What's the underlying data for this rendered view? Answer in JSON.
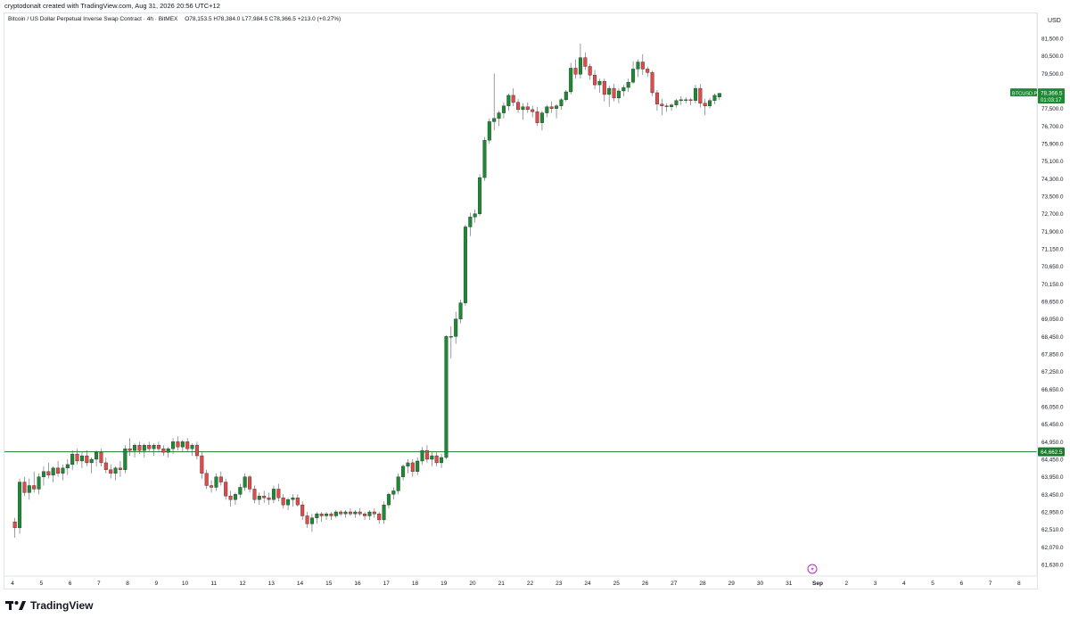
{
  "header": {
    "credit": "cryptodonalt created with TradingView.com, Aug 31, 2026 20:56 UTC+12"
  },
  "legend": {
    "symbol": "Bitcoin / US Dollar Perpetual Inverse Swap Contract · 4h · BitMEX",
    "open": "O78,153.5",
    "high": "H78,384.0",
    "low": "L77,984.5",
    "close": "C78,366.5",
    "change": "+213.0 (+0.27%)"
  },
  "footer": {
    "brand": "TradingView"
  },
  "price_label": {
    "symbol_tag": "BTCUSD.P",
    "price": "78,366.5",
    "countdown": "01:03:17"
  },
  "level_label": {
    "price": "64,662.5"
  },
  "colors": {
    "up": "#26a69a",
    "down": "#ef5350",
    "up_body": "#1b8a32",
    "down_body": "#e24a4a",
    "level": "#1b7a2b",
    "grid": "#f0f3fa"
  },
  "chart_data": {
    "type": "candlestick",
    "ylabel": "USD",
    "y_ticks": [
      "81,500.0",
      "80,500.0",
      "79,500.0",
      "78,500.0",
      "77,500.0",
      "76,700.0",
      "75,900.0",
      "75,100.0",
      "74,300.0",
      "73,500.0",
      "72,700.0",
      "71,900.0",
      "71,150.0",
      "70,650.0",
      "70,150.0",
      "69,650.0",
      "69,050.0",
      "68,450.0",
      "67,850.0",
      "67,250.0",
      "66,650.0",
      "66,050.0",
      "65,450.0",
      "64,950.0",
      "64,450.0",
      "63,950.0",
      "63,450.0",
      "62,950.0",
      "62,510.0",
      "62,070.0",
      "61,630.0"
    ],
    "x_ticks": [
      "4",
      "5",
      "6",
      "7",
      "8",
      "9",
      "10",
      "11",
      "12",
      "13",
      "14",
      "15",
      "16",
      "17",
      "18",
      "19",
      "20",
      "21",
      "22",
      "23",
      "24",
      "25",
      "26",
      "27",
      "28",
      "29",
      "30",
      "31",
      "Sep",
      "2",
      "3",
      "4",
      "5",
      "6",
      "7",
      "8"
    ],
    "horizontal_level": 64662.5,
    "last_price": 78366.5,
    "candles_per_day": 6,
    "first_day": "4",
    "ohlc": [
      [
        62700,
        62800,
        62300,
        62550
      ],
      [
        62550,
        63900,
        62400,
        63800
      ],
      [
        63800,
        63950,
        63400,
        63500
      ],
      [
        63500,
        63900,
        63300,
        63700
      ],
      [
        63700,
        64100,
        63500,
        63600
      ],
      [
        63600,
        64050,
        63450,
        63950
      ],
      [
        63950,
        64250,
        63700,
        64100
      ],
      [
        64100,
        64350,
        63900,
        64000
      ],
      [
        64000,
        64250,
        63800,
        64200
      ],
      [
        64200,
        64400,
        63950,
        64050
      ],
      [
        64050,
        64300,
        63850,
        64200
      ],
      [
        64200,
        64450,
        64000,
        64300
      ],
      [
        64300,
        64700,
        64150,
        64600
      ],
      [
        64600,
        64750,
        64300,
        64400
      ],
      [
        64400,
        64650,
        64200,
        64550
      ],
      [
        64550,
        64700,
        64250,
        64350
      ],
      [
        64350,
        64500,
        64050,
        64450
      ],
      [
        64450,
        64700,
        64250,
        64650
      ],
      [
        64650,
        64750,
        64250,
        64350
      ],
      [
        64350,
        64500,
        64050,
        64150
      ],
      [
        64150,
        64300,
        63900,
        64050
      ],
      [
        64050,
        64250,
        63850,
        64200
      ],
      [
        64200,
        64400,
        63950,
        64150
      ],
      [
        64150,
        64850,
        64050,
        64750
      ],
      [
        64750,
        65050,
        64550,
        64700
      ],
      [
        64700,
        64900,
        64500,
        64850
      ],
      [
        64850,
        64950,
        64600,
        64700
      ],
      [
        64700,
        64900,
        64500,
        64850
      ],
      [
        64850,
        64950,
        64650,
        64750
      ],
      [
        64750,
        64900,
        64550,
        64850
      ],
      [
        64850,
        64950,
        64650,
        64750
      ],
      [
        64750,
        64850,
        64550,
        64650
      ],
      [
        64650,
        64800,
        64500,
        64750
      ],
      [
        64750,
        65050,
        64600,
        64950
      ],
      [
        64950,
        65100,
        64700,
        64800
      ],
      [
        64800,
        65000,
        64650,
        64950
      ],
      [
        64950,
        65050,
        64650,
        64750
      ],
      [
        64750,
        64900,
        64550,
        64850
      ],
      [
        64850,
        64950,
        64450,
        64550
      ],
      [
        64550,
        64650,
        63900,
        64050
      ],
      [
        64050,
        64150,
        63600,
        63700
      ],
      [
        63700,
        63850,
        63500,
        63650
      ],
      [
        63650,
        64050,
        63550,
        63950
      ],
      [
        63950,
        64100,
        63700,
        63800
      ],
      [
        63800,
        63900,
        63300,
        63400
      ],
      [
        63400,
        63550,
        63100,
        63300
      ],
      [
        63300,
        63500,
        63150,
        63450
      ],
      [
        63450,
        63750,
        63350,
        63650
      ],
      [
        63650,
        64050,
        63550,
        63950
      ],
      [
        63950,
        64000,
        63500,
        63600
      ],
      [
        63600,
        63700,
        63200,
        63300
      ],
      [
        63300,
        63500,
        63150,
        63400
      ],
      [
        63400,
        63550,
        63200,
        63350
      ],
      [
        63350,
        63500,
        63150,
        63300
      ],
      [
        63300,
        63700,
        63200,
        63600
      ],
      [
        63600,
        63750,
        63250,
        63350
      ],
      [
        63350,
        63450,
        63050,
        63150
      ],
      [
        63150,
        63350,
        63000,
        63300
      ],
      [
        63300,
        63450,
        63100,
        63350
      ],
      [
        63350,
        63450,
        63100,
        63150
      ],
      [
        63150,
        63250,
        62750,
        62850
      ],
      [
        62850,
        62950,
        62550,
        62650
      ],
      [
        62650,
        62900,
        62450,
        62800
      ],
      [
        62800,
        62950,
        62650,
        62900
      ],
      [
        62900,
        62950,
        62700,
        62850
      ],
      [
        62850,
        62950,
        62750,
        62900
      ],
      [
        62900,
        62950,
        62750,
        62850
      ],
      [
        62850,
        63000,
        62800,
        62950
      ],
      [
        62950,
        63000,
        62850,
        62900
      ],
      [
        62900,
        63000,
        62800,
        62950
      ],
      [
        62950,
        63050,
        62850,
        62900
      ],
      [
        62900,
        63000,
        62800,
        62950
      ],
      [
        62950,
        63050,
        62850,
        62900
      ],
      [
        62900,
        62950,
        62750,
        62850
      ],
      [
        62850,
        63000,
        62750,
        62950
      ],
      [
        62950,
        63050,
        62800,
        62900
      ],
      [
        62900,
        62950,
        62650,
        62750
      ],
      [
        62750,
        63250,
        62650,
        63150
      ],
      [
        63150,
        63500,
        63050,
        63450
      ],
      [
        63450,
        63650,
        63300,
        63550
      ],
      [
        63550,
        64050,
        63450,
        63950
      ],
      [
        63950,
        64300,
        63850,
        64250
      ],
      [
        64250,
        64450,
        64050,
        64350
      ],
      [
        64350,
        64450,
        63950,
        64100
      ],
      [
        64100,
        64500,
        64000,
        64400
      ],
      [
        64400,
        64800,
        64300,
        64700
      ],
      [
        64700,
        64850,
        64350,
        64450
      ],
      [
        64450,
        64650,
        64250,
        64550
      ],
      [
        64550,
        64650,
        64250,
        64350
      ],
      [
        64350,
        64600,
        64200,
        64500
      ],
      [
        64500,
        68500,
        64450,
        68450
      ],
      [
        68450,
        68800,
        67700,
        68450
      ],
      [
        68450,
        69300,
        68200,
        69050
      ],
      [
        69050,
        69700,
        68900,
        69600
      ],
      [
        69600,
        72200,
        69500,
        72100
      ],
      [
        72100,
        72750,
        71700,
        72550
      ],
      [
        72550,
        72900,
        72300,
        72700
      ],
      [
        72700,
        74500,
        72600,
        74350
      ],
      [
        74350,
        76200,
        74200,
        76050
      ],
      [
        76050,
        77050,
        75900,
        76900
      ],
      [
        76900,
        79500,
        76500,
        77050
      ],
      [
        77050,
        77400,
        76700,
        77300
      ],
      [
        77300,
        77850,
        77050,
        77650
      ],
      [
        77650,
        78350,
        77400,
        78250
      ],
      [
        78250,
        78650,
        77650,
        77850
      ],
      [
        77850,
        78050,
        77300,
        77450
      ],
      [
        77450,
        77800,
        77000,
        77600
      ],
      [
        77600,
        77850,
        77300,
        77450
      ],
      [
        77450,
        77650,
        77100,
        77350
      ],
      [
        77350,
        77600,
        76700,
        76850
      ],
      [
        76850,
        77400,
        76500,
        77300
      ],
      [
        77300,
        77700,
        77100,
        77600
      ],
      [
        77600,
        77900,
        77300,
        77500
      ],
      [
        77500,
        77750,
        77050,
        77650
      ],
      [
        77650,
        78100,
        77450,
        78000
      ],
      [
        78000,
        78550,
        77900,
        78450
      ],
      [
        78450,
        80100,
        78300,
        79800
      ],
      [
        79800,
        80300,
        79200,
        79450
      ],
      [
        79450,
        81200,
        79200,
        80400
      ],
      [
        80400,
        80700,
        79700,
        79900
      ],
      [
        79900,
        80050,
        79150,
        79400
      ],
      [
        79400,
        79700,
        78600,
        78850
      ],
      [
        78850,
        79200,
        78400,
        79050
      ],
      [
        79050,
        79200,
        77900,
        78300
      ],
      [
        78300,
        78800,
        77600,
        78650
      ],
      [
        78650,
        78900,
        77900,
        78100
      ],
      [
        78100,
        78650,
        77800,
        78500
      ],
      [
        78500,
        78850,
        78200,
        78700
      ],
      [
        78700,
        79200,
        78450,
        79000
      ],
      [
        79000,
        80200,
        78900,
        79750
      ],
      [
        79750,
        80300,
        79300,
        80150
      ],
      [
        80150,
        80600,
        79400,
        79750
      ],
      [
        79750,
        79900,
        79300,
        79550
      ],
      [
        79550,
        79650,
        78200,
        78400
      ],
      [
        78400,
        78550,
        77400,
        77750
      ],
      [
        77750,
        78050,
        77200,
        77650
      ],
      [
        77650,
        77800,
        77350,
        77600
      ],
      [
        77600,
        77800,
        77400,
        77700
      ],
      [
        77700,
        78050,
        77550,
        77950
      ],
      [
        77950,
        78200,
        77700,
        78000
      ],
      [
        78000,
        78150,
        77800,
        78000
      ],
      [
        78000,
        78100,
        77700,
        77950
      ],
      [
        77950,
        78850,
        77800,
        78650
      ],
      [
        78650,
        78900,
        77550,
        77800
      ],
      [
        77800,
        78050,
        77200,
        77650
      ],
      [
        77650,
        78100,
        77500,
        77950
      ],
      [
        77950,
        78350,
        77750,
        78250
      ],
      [
        78153.5,
        78384,
        77984.5,
        78366.5
      ]
    ]
  }
}
